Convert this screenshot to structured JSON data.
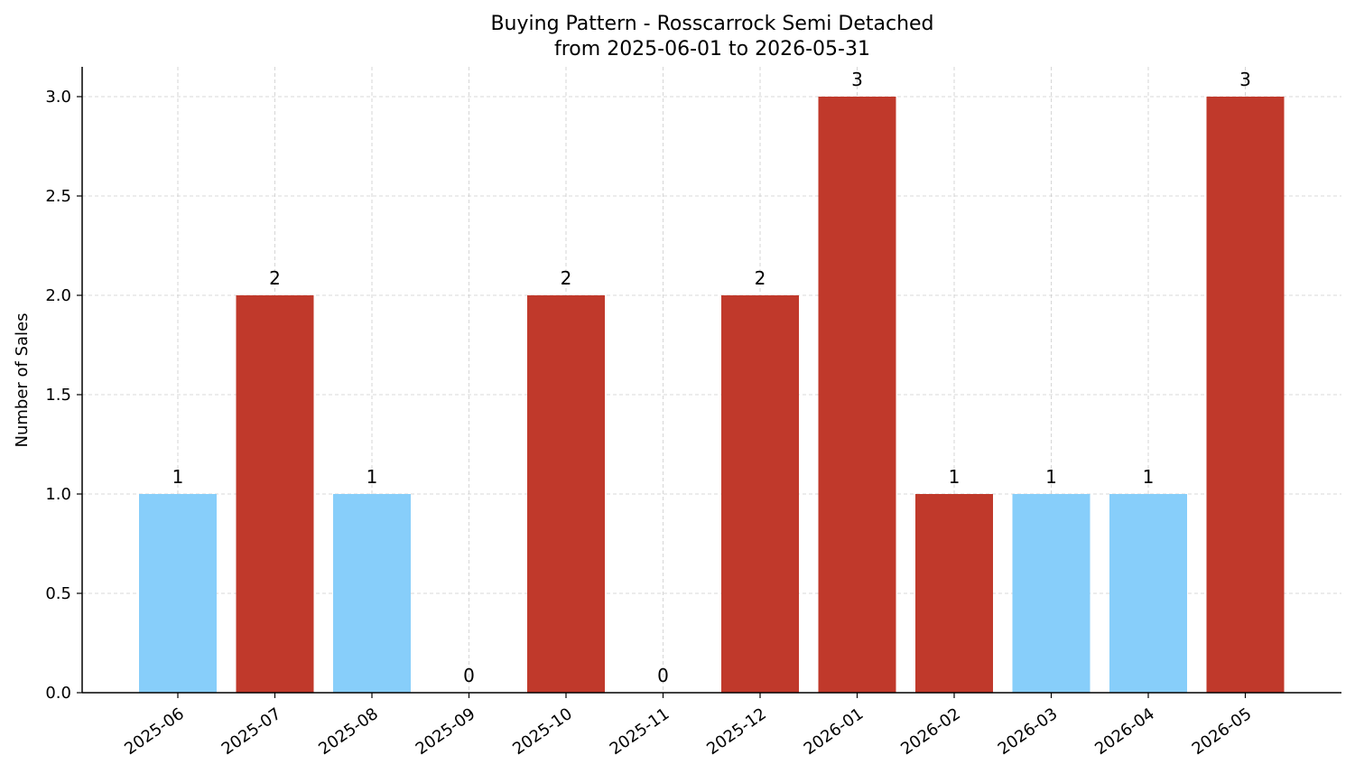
{
  "chart_data": {
    "type": "bar",
    "title": "Buying Pattern - Rosscarrock Semi Detached",
    "subtitle": "from 2025-06-01 to 2026-05-31",
    "xlabel": "",
    "ylabel": "Number of Sales",
    "categories": [
      "2025-06",
      "2025-07",
      "2025-08",
      "2025-09",
      "2025-10",
      "2025-11",
      "2025-12",
      "2026-01",
      "2026-02",
      "2026-03",
      "2026-04",
      "2026-05"
    ],
    "values": [
      1,
      2,
      1,
      0,
      2,
      0,
      2,
      3,
      1,
      1,
      1,
      3
    ],
    "bar_colors": [
      "#87cefa",
      "#c0392b",
      "#87cefa",
      "#c0392b",
      "#c0392b",
      "#c0392b",
      "#c0392b",
      "#c0392b",
      "#c0392b",
      "#87cefa",
      "#87cefa",
      "#c0392b"
    ],
    "ylim": [
      0,
      3.15
    ],
    "yticks": [
      0.0,
      0.5,
      1.0,
      1.5,
      2.0,
      2.5,
      3.0
    ],
    "ytick_labels": [
      "0.0",
      "0.5",
      "1.0",
      "1.5",
      "2.0",
      "2.5",
      "3.0"
    ],
    "grid": true,
    "legend": "none"
  }
}
